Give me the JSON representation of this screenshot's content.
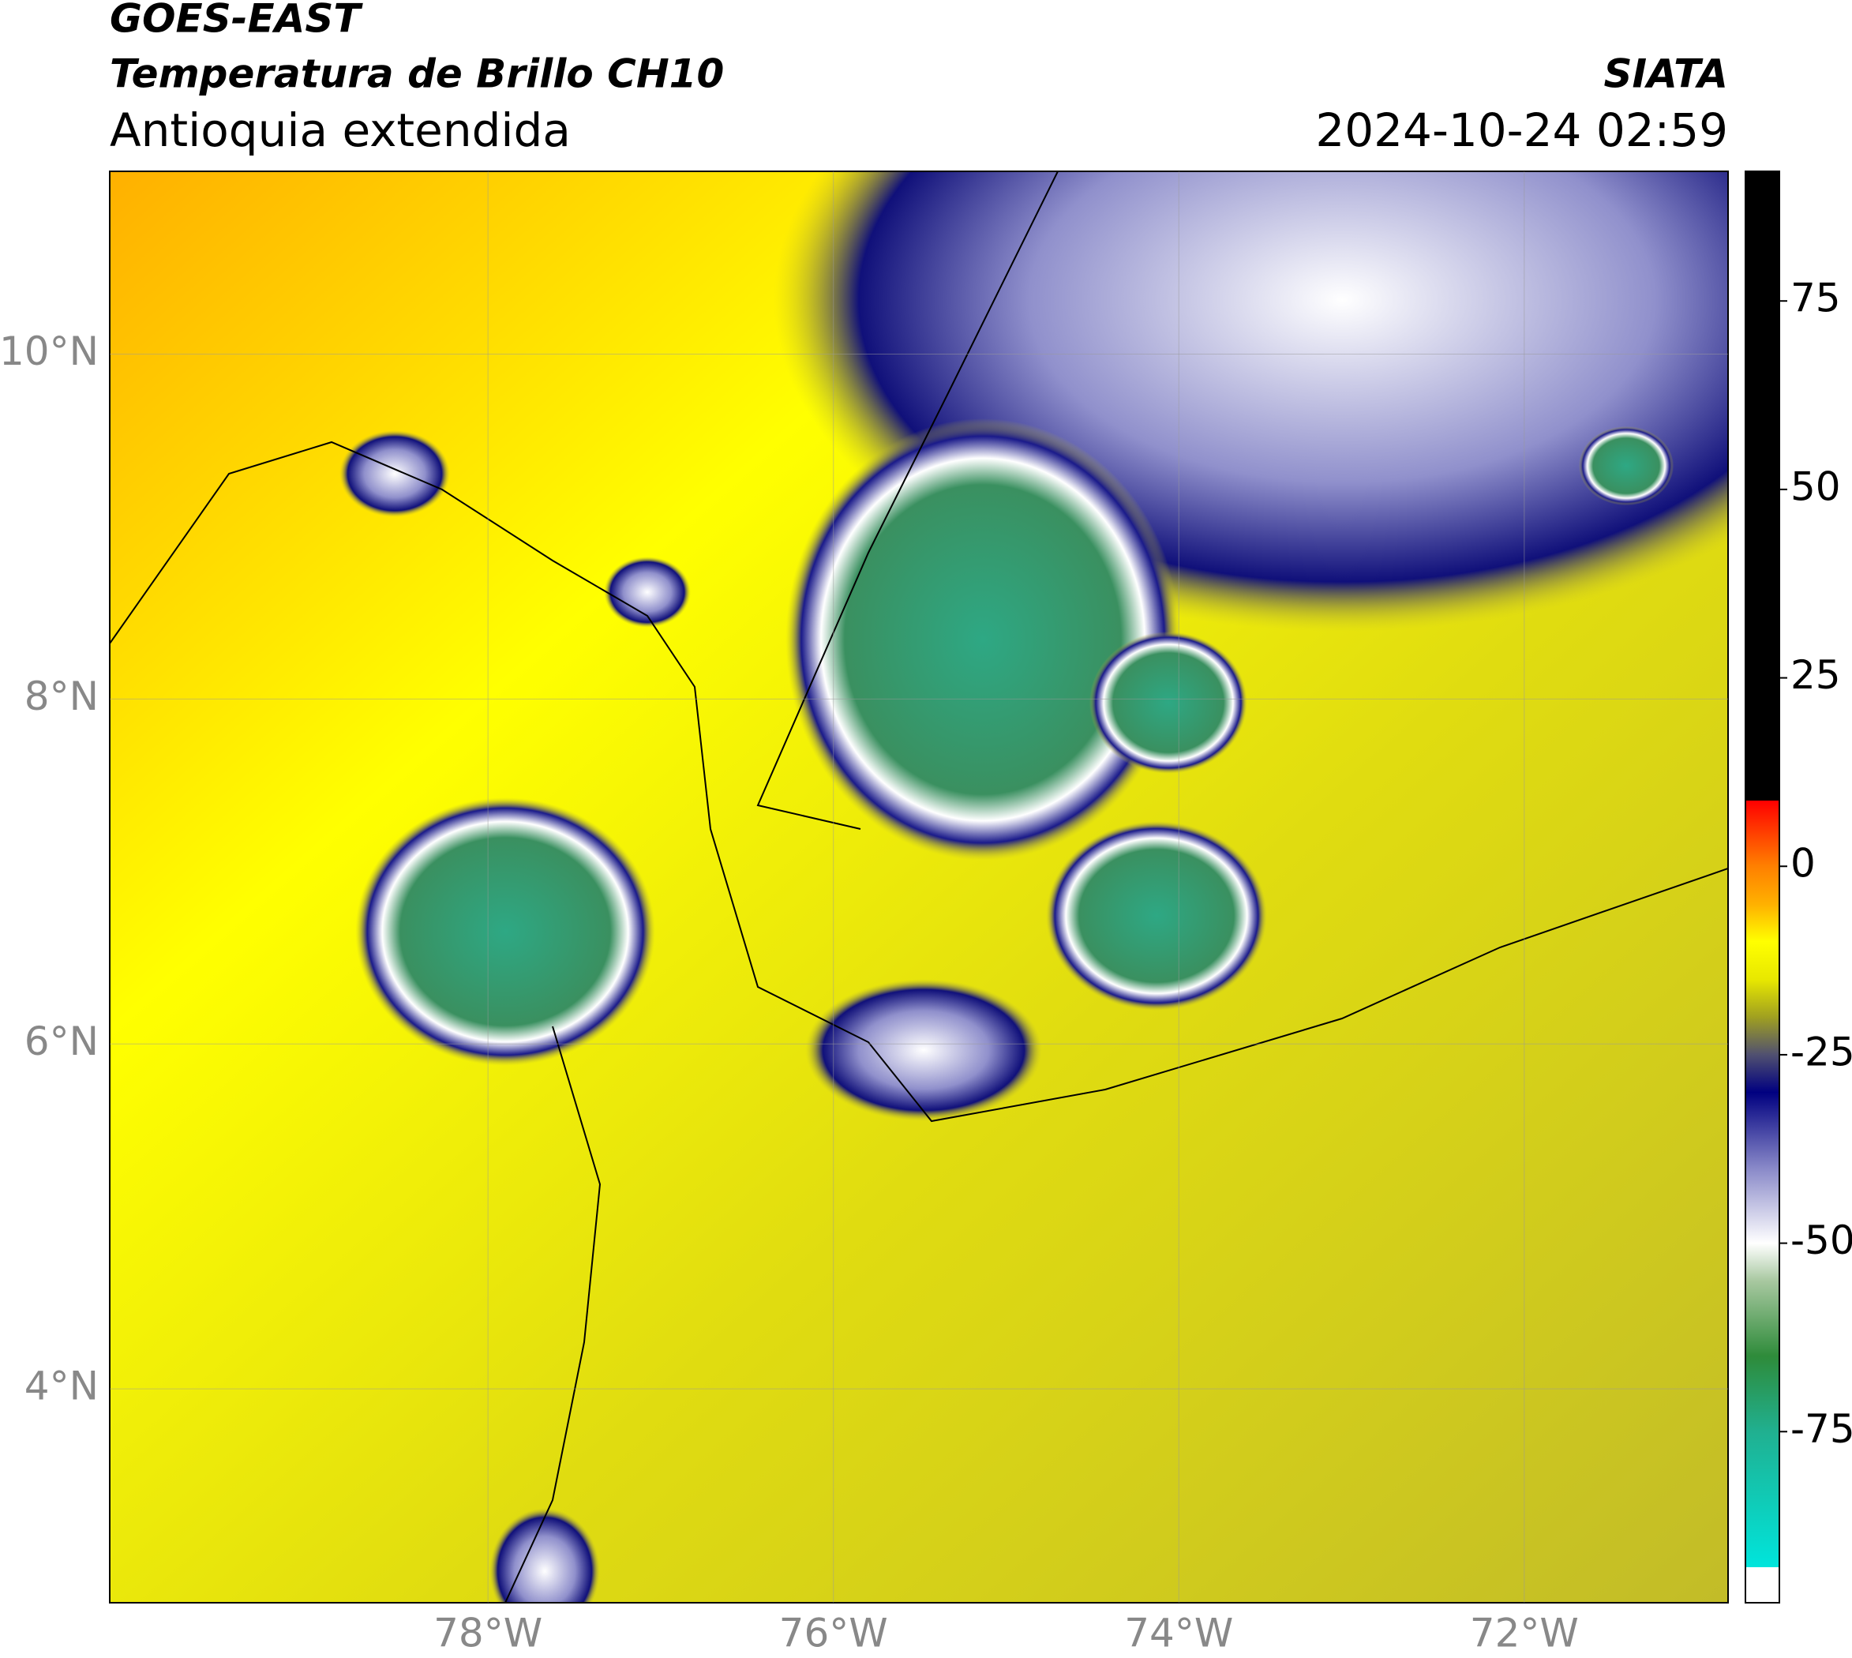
{
  "header": {
    "title": "GOES-EAST",
    "subtitle": "Temperatura de Brillo CH10",
    "region": "Antioquia extendida",
    "source": "SIATA",
    "datetime": "2024-10-24 02:59"
  },
  "map": {
    "lat_range": [
      2.76,
      11.06
    ],
    "lon_range": [
      -80.19,
      -70.82
    ],
    "lat_ticks": [
      {
        "value": 10,
        "label": "10°N"
      },
      {
        "value": 8,
        "label": "8°N"
      },
      {
        "value": 6,
        "label": "6°N"
      },
      {
        "value": 4,
        "label": "4°N"
      }
    ],
    "lon_ticks": [
      {
        "value": -78,
        "label": "78°W"
      },
      {
        "value": -76,
        "label": "76°W"
      },
      {
        "value": -74,
        "label": "74°W"
      },
      {
        "value": -72,
        "label": "72°W"
      }
    ],
    "grid": true
  },
  "colorbar": {
    "range": [
      -97.7,
      92.2
    ],
    "ticks": [
      75,
      50,
      25,
      0,
      -25,
      -50,
      -75
    ],
    "colormap": [
      {
        "value": 92.2,
        "color": "#000000"
      },
      {
        "value": 8.7,
        "color": "#000000"
      },
      {
        "value": 8.7,
        "color": "#ff0000"
      },
      {
        "value": 0,
        "color": "#ff8000"
      },
      {
        "value": -5,
        "color": "#ffb000"
      },
      {
        "value": -10,
        "color": "#ffff00"
      },
      {
        "value": -15,
        "color": "#e8e800"
      },
      {
        "value": -20,
        "color": "#a0a020"
      },
      {
        "value": -25,
        "color": "#505070"
      },
      {
        "value": -30,
        "color": "#000080"
      },
      {
        "value": -40,
        "color": "#8888c8"
      },
      {
        "value": -50,
        "color": "#ffffff"
      },
      {
        "value": -55,
        "color": "#a8c8a0"
      },
      {
        "value": -65,
        "color": "#2e8b3a"
      },
      {
        "value": -75,
        "color": "#20b090"
      },
      {
        "value": -93,
        "color": "#00e5dc"
      },
      {
        "value": -93,
        "color": "#ffffff"
      },
      {
        "value": -97.7,
        "color": "#ffffff"
      }
    ]
  }
}
